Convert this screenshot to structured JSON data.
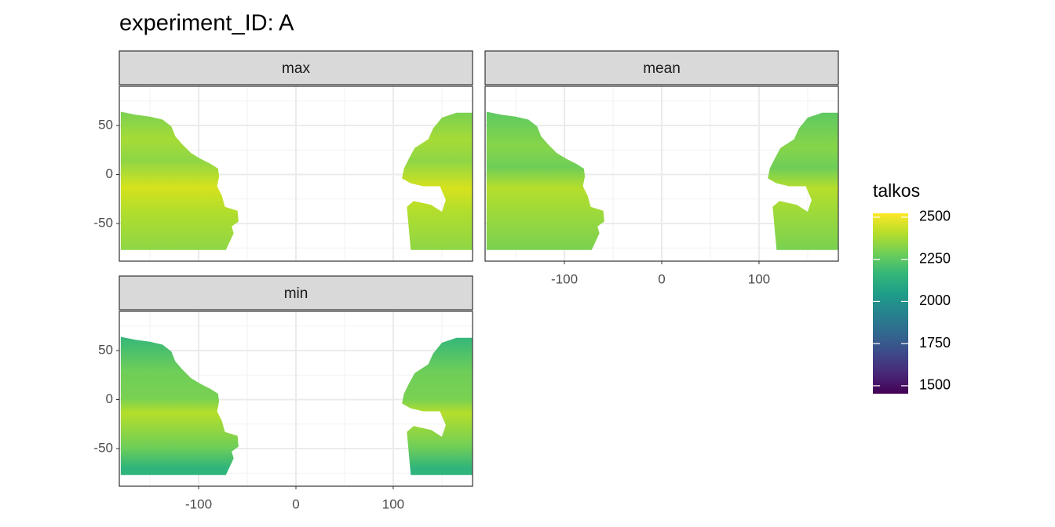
{
  "chart_data": {
    "type": "facet-map",
    "title": "experiment_ID: A",
    "facets": [
      "max",
      "mean",
      "min"
    ],
    "xlim": [
      -181.5,
      181.5
    ],
    "ylim": [
      -88.4,
      90
    ],
    "xticks": [
      -100,
      0,
      100
    ],
    "yticks": [
      -50,
      0,
      50
    ],
    "grid": true,
    "legend": {
      "title": "talkos",
      "lim": [
        1453,
        2523
      ],
      "ticks": [
        1500,
        1750,
        2000,
        2250,
        2500
      ],
      "colors": [
        "#440154",
        "#482878",
        "#3e4989",
        "#31688e",
        "#26828e",
        "#1f9e89",
        "#35b779",
        "#6ece58",
        "#b5de2b",
        "#fde725"
      ]
    }
  }
}
